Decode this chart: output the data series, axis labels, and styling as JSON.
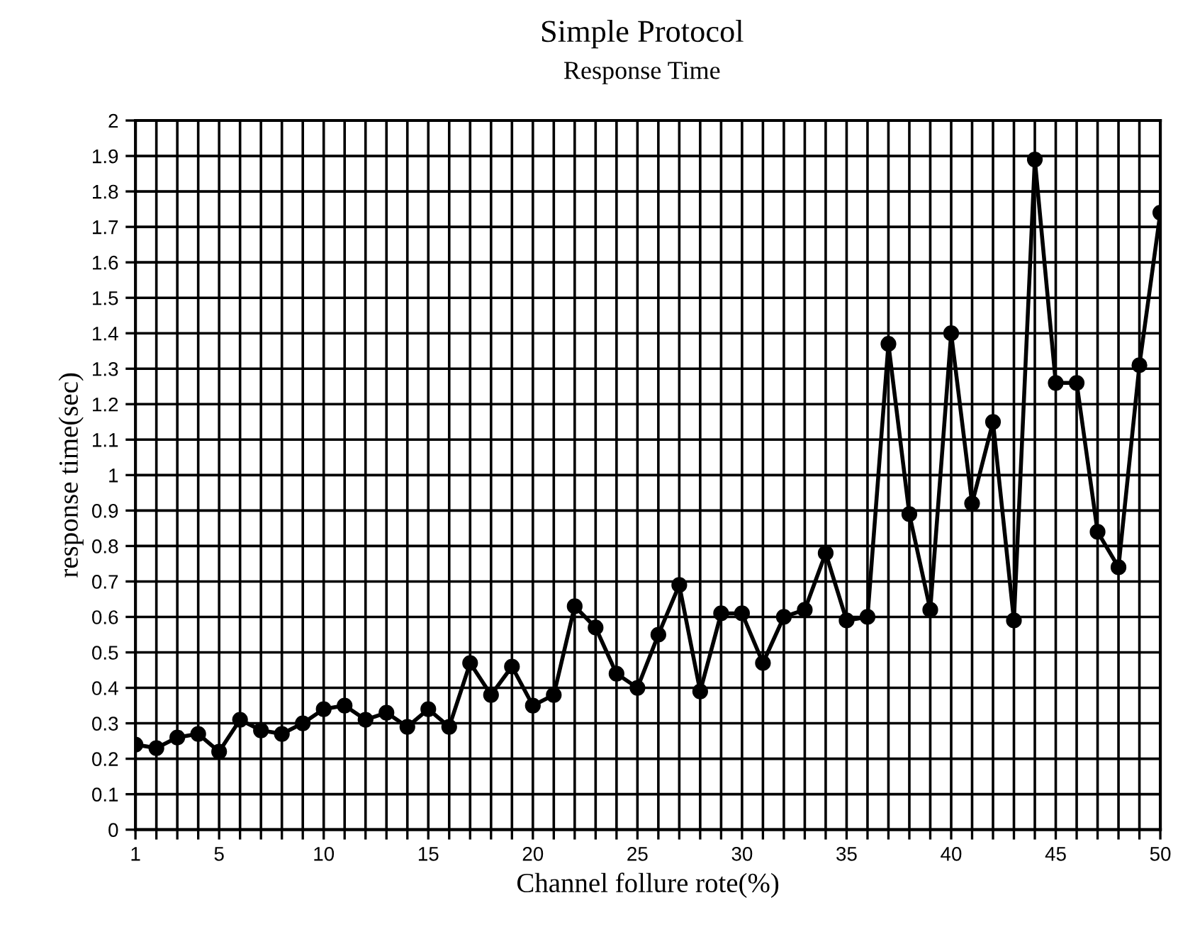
{
  "chart_data": {
    "type": "line",
    "title": "Simple Protocol",
    "subtitle": "Response Time",
    "xlabel": "Channel follure rote(%)",
    "ylabel": "response time(sec)",
    "x": [
      1,
      2,
      3,
      4,
      5,
      6,
      7,
      8,
      9,
      10,
      11,
      12,
      13,
      14,
      15,
      16,
      17,
      18,
      19,
      20,
      21,
      22,
      23,
      24,
      25,
      26,
      27,
      28,
      29,
      30,
      31,
      32,
      33,
      34,
      35,
      36,
      37,
      38,
      39,
      40,
      41,
      42,
      43,
      44,
      45,
      46,
      47,
      48,
      49,
      50
    ],
    "series": [
      {
        "color": "#000000",
        "values": [
          0.24,
          0.23,
          0.26,
          0.27,
          0.22,
          0.31,
          0.28,
          0.27,
          0.3,
          0.34,
          0.35,
          0.31,
          0.33,
          0.29,
          0.34,
          0.29,
          0.47,
          0.38,
          0.46,
          0.35,
          0.38,
          0.63,
          0.57,
          0.44,
          0.4,
          0.55,
          0.69,
          0.39,
          0.61,
          0.61,
          0.47,
          0.6,
          0.62,
          0.78,
          0.59,
          0.6,
          1.37,
          0.89,
          0.62,
          1.4,
          0.92,
          1.15,
          0.59,
          1.89,
          1.26,
          1.26,
          0.84,
          0.74,
          1.31,
          1.74
        ]
      }
    ],
    "xlim": [
      1,
      50
    ],
    "xticks": [
      1,
      {
        "value": 2,
        "label": null
      },
      {
        "value": 3,
        "label": null
      },
      {
        "value": 4,
        "label": null
      },
      5,
      {
        "value": 6,
        "label": null
      },
      {
        "value": 7,
        "label": null
      },
      {
        "value": 8,
        "label": null
      },
      {
        "value": 9,
        "label": null
      },
      10,
      {
        "value": 11,
        "label": null
      },
      {
        "value": 12,
        "label": null
      },
      {
        "value": 13,
        "label": null
      },
      {
        "value": 14,
        "label": null
      },
      15,
      {
        "value": 16,
        "label": null
      },
      {
        "value": 17,
        "label": null
      },
      {
        "value": 18,
        "label": null
      },
      {
        "value": 19,
        "label": null
      },
      20,
      {
        "value": 21,
        "label": null
      },
      {
        "value": 22,
        "label": null
      },
      {
        "value": 23,
        "label": null
      },
      {
        "value": 24,
        "label": null
      },
      25,
      {
        "value": 26,
        "label": null
      },
      {
        "value": 27,
        "label": null
      },
      {
        "value": 28,
        "label": null
      },
      {
        "value": 29,
        "label": null
      },
      30,
      {
        "value": 31,
        "label": null
      },
      {
        "value": 32,
        "label": null
      },
      {
        "value": 33,
        "label": null
      },
      {
        "value": 34,
        "label": null
      },
      35,
      {
        "value": 36,
        "label": null
      },
      {
        "value": 37,
        "label": null
      },
      {
        "value": 38,
        "label": null
      },
      {
        "value": 39,
        "label": null
      },
      40,
      {
        "value": 41,
        "label": null
      },
      {
        "value": 42,
        "label": null
      },
      {
        "value": 43,
        "label": null
      },
      {
        "value": 44,
        "label": null
      },
      45,
      {
        "value": 46,
        "label": null
      },
      {
        "value": 47,
        "label": null
      },
      {
        "value": 48,
        "label": null
      },
      {
        "value": 49,
        "label": null
      },
      50
    ],
    "ylim": [
      0,
      2
    ],
    "yticks": [
      0,
      0.1,
      0.2,
      0.3,
      0.4,
      0.5,
      0.6,
      0.7,
      0.8,
      0.9,
      1,
      1.1,
      1.2,
      1.3,
      1.4,
      1.5,
      1.6,
      1.7,
      1.8,
      1.9,
      2
    ],
    "grid": true,
    "marker": "circle",
    "line_style": "solid"
  }
}
